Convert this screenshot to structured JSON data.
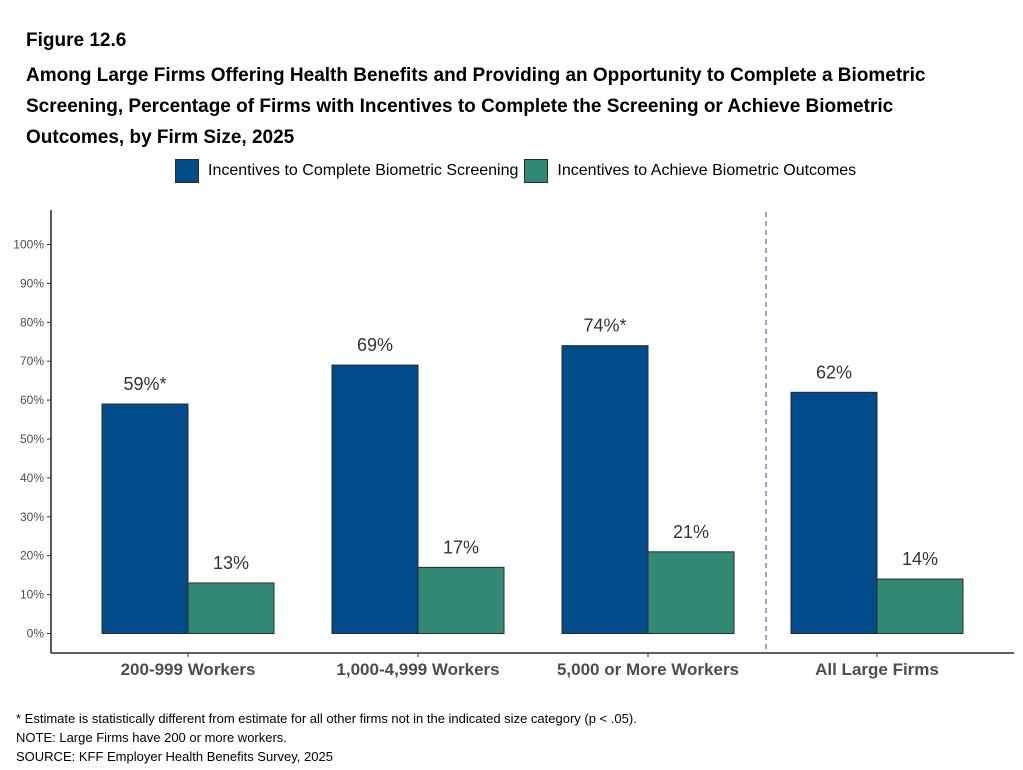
{
  "figure": {
    "label": "Figure 12.6",
    "title": "Among Large Firms Offering Health Benefits and Providing an Opportunity to Complete a Biometric Screening, Percentage of Firms with Incentives to Complete the Screening or Achieve Biometric Outcomes, by Firm Size, 2025"
  },
  "chart_data": {
    "type": "bar",
    "categories": [
      "200-999 Workers",
      "1,000-4,999 Workers",
      "5,000 or More Workers",
      "All Large Firms"
    ],
    "series": [
      {
        "name": "Incentives to Complete Biometric Screening",
        "color": "#004c8a",
        "values": [
          59,
          69,
          74,
          62
        ],
        "labels": [
          "59%*",
          "69%",
          "74%*",
          "62%"
        ]
      },
      {
        "name": "Incentives to Achieve Biometric Outcomes",
        "color": "#338a74",
        "values": [
          13,
          17,
          21,
          14
        ],
        "labels": [
          "13%",
          "17%",
          "21%",
          "14%"
        ]
      }
    ],
    "ylim": [
      0,
      100
    ],
    "yticks": [
      0,
      10,
      20,
      30,
      40,
      50,
      60,
      70,
      80,
      90,
      100
    ],
    "ytick_labels": [
      "0%",
      "10%",
      "20%",
      "30%",
      "40%",
      "50%",
      "60%",
      "70%",
      "80%",
      "90%",
      "100%"
    ],
    "divider": {
      "between": [
        "5,000 or More Workers",
        "All Large Firms"
      ],
      "color": "#9b59b6",
      "style": "dashed"
    },
    "legend_position": "top",
    "grid": false
  },
  "notes": [
    "* Estimate is statistically different from estimate for all other firms not in the indicated size category (p < .05).",
    "NOTE: Large Firms have 200 or more workers.",
    "SOURCE: KFF Employer Health Benefits Survey, 2025"
  ]
}
